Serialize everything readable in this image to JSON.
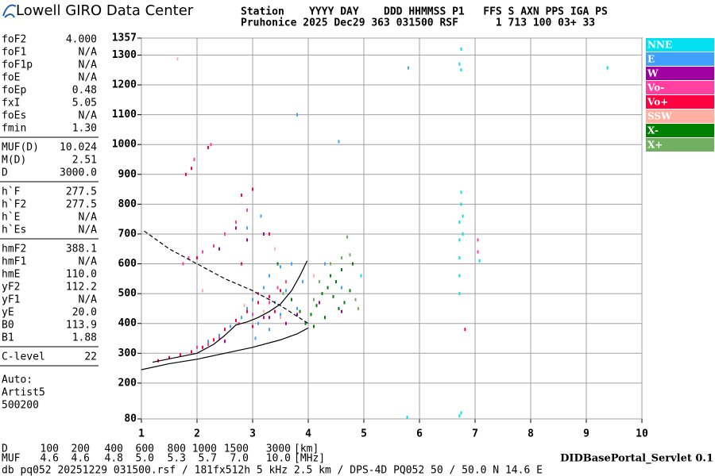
{
  "header": {
    "logo": "Lowell GIRO Data Center",
    "line1": "Station    YYYY DAY    DDD HHMMSS P1   FFS S AXN PPS IGA PS",
    "line2": "Pruhonice 2025 Dec29 363 031500 RSF      1 713 100 03+ 33"
  },
  "parameters": [
    [
      [
        "foF2",
        "4.000"
      ],
      [
        "foF1",
        "N/A"
      ],
      [
        "foF1p",
        "N/A"
      ],
      [
        "foE",
        "N/A"
      ],
      [
        "foEp",
        "0.48"
      ],
      [
        "fxI",
        "5.05"
      ],
      [
        "foEs",
        "N/A"
      ],
      [
        "fmin",
        "1.30"
      ]
    ],
    [
      [
        "MUF(D)",
        "10.024"
      ],
      [
        "M(D)",
        "2.51"
      ],
      [
        "D",
        "3000.0"
      ]
    ],
    [
      [
        "h`F",
        "277.5"
      ],
      [
        "h`F2",
        "277.5"
      ],
      [
        "h`E",
        "N/A"
      ],
      [
        "h`Es",
        "N/A"
      ]
    ],
    [
      [
        "hmF2",
        "388.1"
      ],
      [
        "hmF1",
        "N/A"
      ],
      [
        "hmE",
        "110.0"
      ],
      [
        "yF2",
        "112.2"
      ],
      [
        "yF1",
        "N/A"
      ],
      [
        "yE",
        "20.0"
      ],
      [
        "B0",
        "113.9"
      ],
      [
        "B1",
        "1.88"
      ]
    ],
    [
      [
        "C-level",
        "22"
      ]
    ]
  ],
  "autoscaling": [
    "Auto:",
    "Artist5",
    "500200"
  ],
  "muf_table": {
    "d_label": "D",
    "d": [
      "100",
      "200",
      "400",
      "600",
      "800",
      "1000",
      "1500",
      "3000"
    ],
    "d_unit": "[km]",
    "muf_label": "MUF",
    "muf": [
      "4.6",
      "4.6",
      "4.8",
      "5.0",
      "5.3",
      "5.7",
      "7.0",
      "10.0"
    ],
    "muf_unit": "[MHz]"
  },
  "footer": {
    "file": "db pq052 20251229 031500.rsf / 181fx512h 5 kHz 2.5 km / DPS-4D PQ052 50 / 50.0 N 14.6 E",
    "servlet": "DIDBasePortal_Servlet 0.1"
  },
  "chart_data": {
    "type": "scatter",
    "grid": true,
    "legend": "right",
    "xlim": [
      1,
      10
    ],
    "xticks": [
      1,
      2,
      3,
      4,
      5,
      6,
      7,
      8,
      9,
      10
    ],
    "ylim": [
      80,
      1357
    ],
    "yticks": [
      80,
      200,
      300,
      400,
      500,
      600,
      700,
      800,
      900,
      1000,
      1100,
      1200,
      1300,
      1357
    ],
    "series": [
      {
        "name": "NNE",
        "color": "#00e0f0",
        "x": [
          6.72,
          6.72,
          6.72,
          6.72,
          6.72,
          6.75,
          6.75,
          6.78,
          6.78,
          6.75,
          6.75,
          6.72,
          7.08,
          5.78,
          6.72,
          6.75,
          9.38,
          4.95
        ],
        "y": [
          500,
          560,
          620,
          680,
          740,
          800,
          840,
          700,
          760,
          1250,
          1320,
          1270,
          610,
          85,
          90,
          100,
          1257,
          560
        ]
      },
      {
        "name": "E",
        "color": "#40a0ff",
        "x": [
          2.8,
          2.9,
          3.0,
          3.1,
          3.2,
          3.3,
          3.4,
          3.5,
          3.5,
          3.6,
          3.7,
          3.8,
          3.9,
          3.05,
          3.3,
          2.6,
          2.9,
          3.15,
          2.4,
          2.2,
          4.3,
          4.6,
          5.8,
          3.8,
          4.55
        ],
        "y": [
          420,
          450,
          480,
          400,
          520,
          560,
          470,
          590,
          430,
          510,
          600,
          450,
          540,
          350,
          380,
          390,
          720,
          760,
          360,
          340,
          600,
          520,
          1257,
          1100,
          1010
        ]
      },
      {
        "name": "W",
        "color": "#a000a0",
        "x": [
          2.7,
          2.9,
          3.2,
          3.0,
          3.3,
          3.6,
          2.5,
          3.8,
          4.2,
          4.6,
          2.4
        ],
        "y": [
          720,
          680,
          700,
          390,
          420,
          400,
          340,
          430,
          470,
          440,
          650
        ]
      },
      {
        "name": "Vo-",
        "color": "#ff40a0",
        "x": [
          1.85,
          2.1,
          2.3,
          2.5,
          2.7,
          1.75,
          2.0,
          2.2,
          2.4,
          2.75,
          3.0,
          3.1,
          3.3,
          3.45,
          3.6,
          2.9,
          1.95,
          2.25,
          7.05,
          7.05
        ],
        "y": [
          620,
          640,
          660,
          700,
          740,
          600,
          320,
          330,
          350,
          400,
          430,
          500,
          470,
          520,
          540,
          780,
          950,
          1000,
          680,
          640
        ]
      },
      {
        "name": "Vo+",
        "color": "#ff0040",
        "x": [
          1.3,
          1.5,
          1.7,
          1.9,
          2.1,
          2.3,
          2.5,
          2.7,
          2.9,
          3.1,
          3.3,
          3.5,
          1.8,
          1.9,
          2.2,
          2.8,
          3.0,
          3.3,
          3.0,
          3.2,
          3.4,
          6.82,
          2.0,
          2.8
        ],
        "y": [
          275,
          285,
          295,
          305,
          320,
          345,
          380,
          410,
          440,
          470,
          490,
          510,
          900,
          920,
          990,
          600,
          850,
          700,
          390,
          420,
          440,
          380,
          620,
          830
        ]
      },
      {
        "name": "SSW",
        "color": "#ffb0a0",
        "x": [
          2.85,
          3.2,
          3.5,
          1.65,
          3.4,
          4.1,
          2.1
        ],
        "y": [
          460,
          440,
          420,
          1287,
          650,
          560,
          510
        ]
      },
      {
        "name": "X-",
        "color": "#008000",
        "x": [
          3.95,
          4.05,
          4.15,
          4.25,
          4.35,
          4.45,
          4.55,
          4.65,
          4.75,
          4.5,
          4.1,
          4.3,
          4.6,
          4.8,
          4.4,
          3.85,
          3.7,
          3.45
        ],
        "y": [
          400,
          430,
          460,
          500,
          520,
          490,
          450,
          470,
          510,
          540,
          390,
          420,
          580,
          600,
          560,
          440,
          480,
          600
        ]
      },
      {
        "name": "X+",
        "color": "#70b060",
        "x": [
          4.2,
          4.4,
          4.6,
          4.75,
          4.1,
          4.85,
          4.7,
          4.9,
          3.55
        ],
        "y": [
          540,
          600,
          620,
          630,
          480,
          480,
          690,
          450,
          500
        ]
      }
    ],
    "traces": [
      {
        "color": "#000000",
        "dashed": true,
        "x": [
          1.05,
          1.5,
          2.0,
          2.5,
          3.0,
          3.5,
          4.0
        ],
        "y": [
          710,
          650,
          600,
          550,
          510,
          460,
          400
        ]
      },
      {
        "color": "#000000",
        "dashed": false,
        "x": [
          1.0,
          1.5,
          2.0,
          2.5,
          3.0,
          3.5,
          3.8,
          4.0
        ],
        "y": [
          245,
          265,
          280,
          300,
          320,
          345,
          365,
          385
        ]
      },
      {
        "color": "#000000",
        "dashed": false,
        "x": [
          1.2,
          1.6,
          2.0,
          2.3,
          2.5,
          2.7,
          2.9,
          3.1,
          3.3,
          3.5,
          3.7,
          3.85,
          3.98
        ],
        "y": [
          270,
          285,
          300,
          330,
          360,
          395,
          405,
          420,
          440,
          465,
          510,
          560,
          610
        ]
      }
    ]
  }
}
